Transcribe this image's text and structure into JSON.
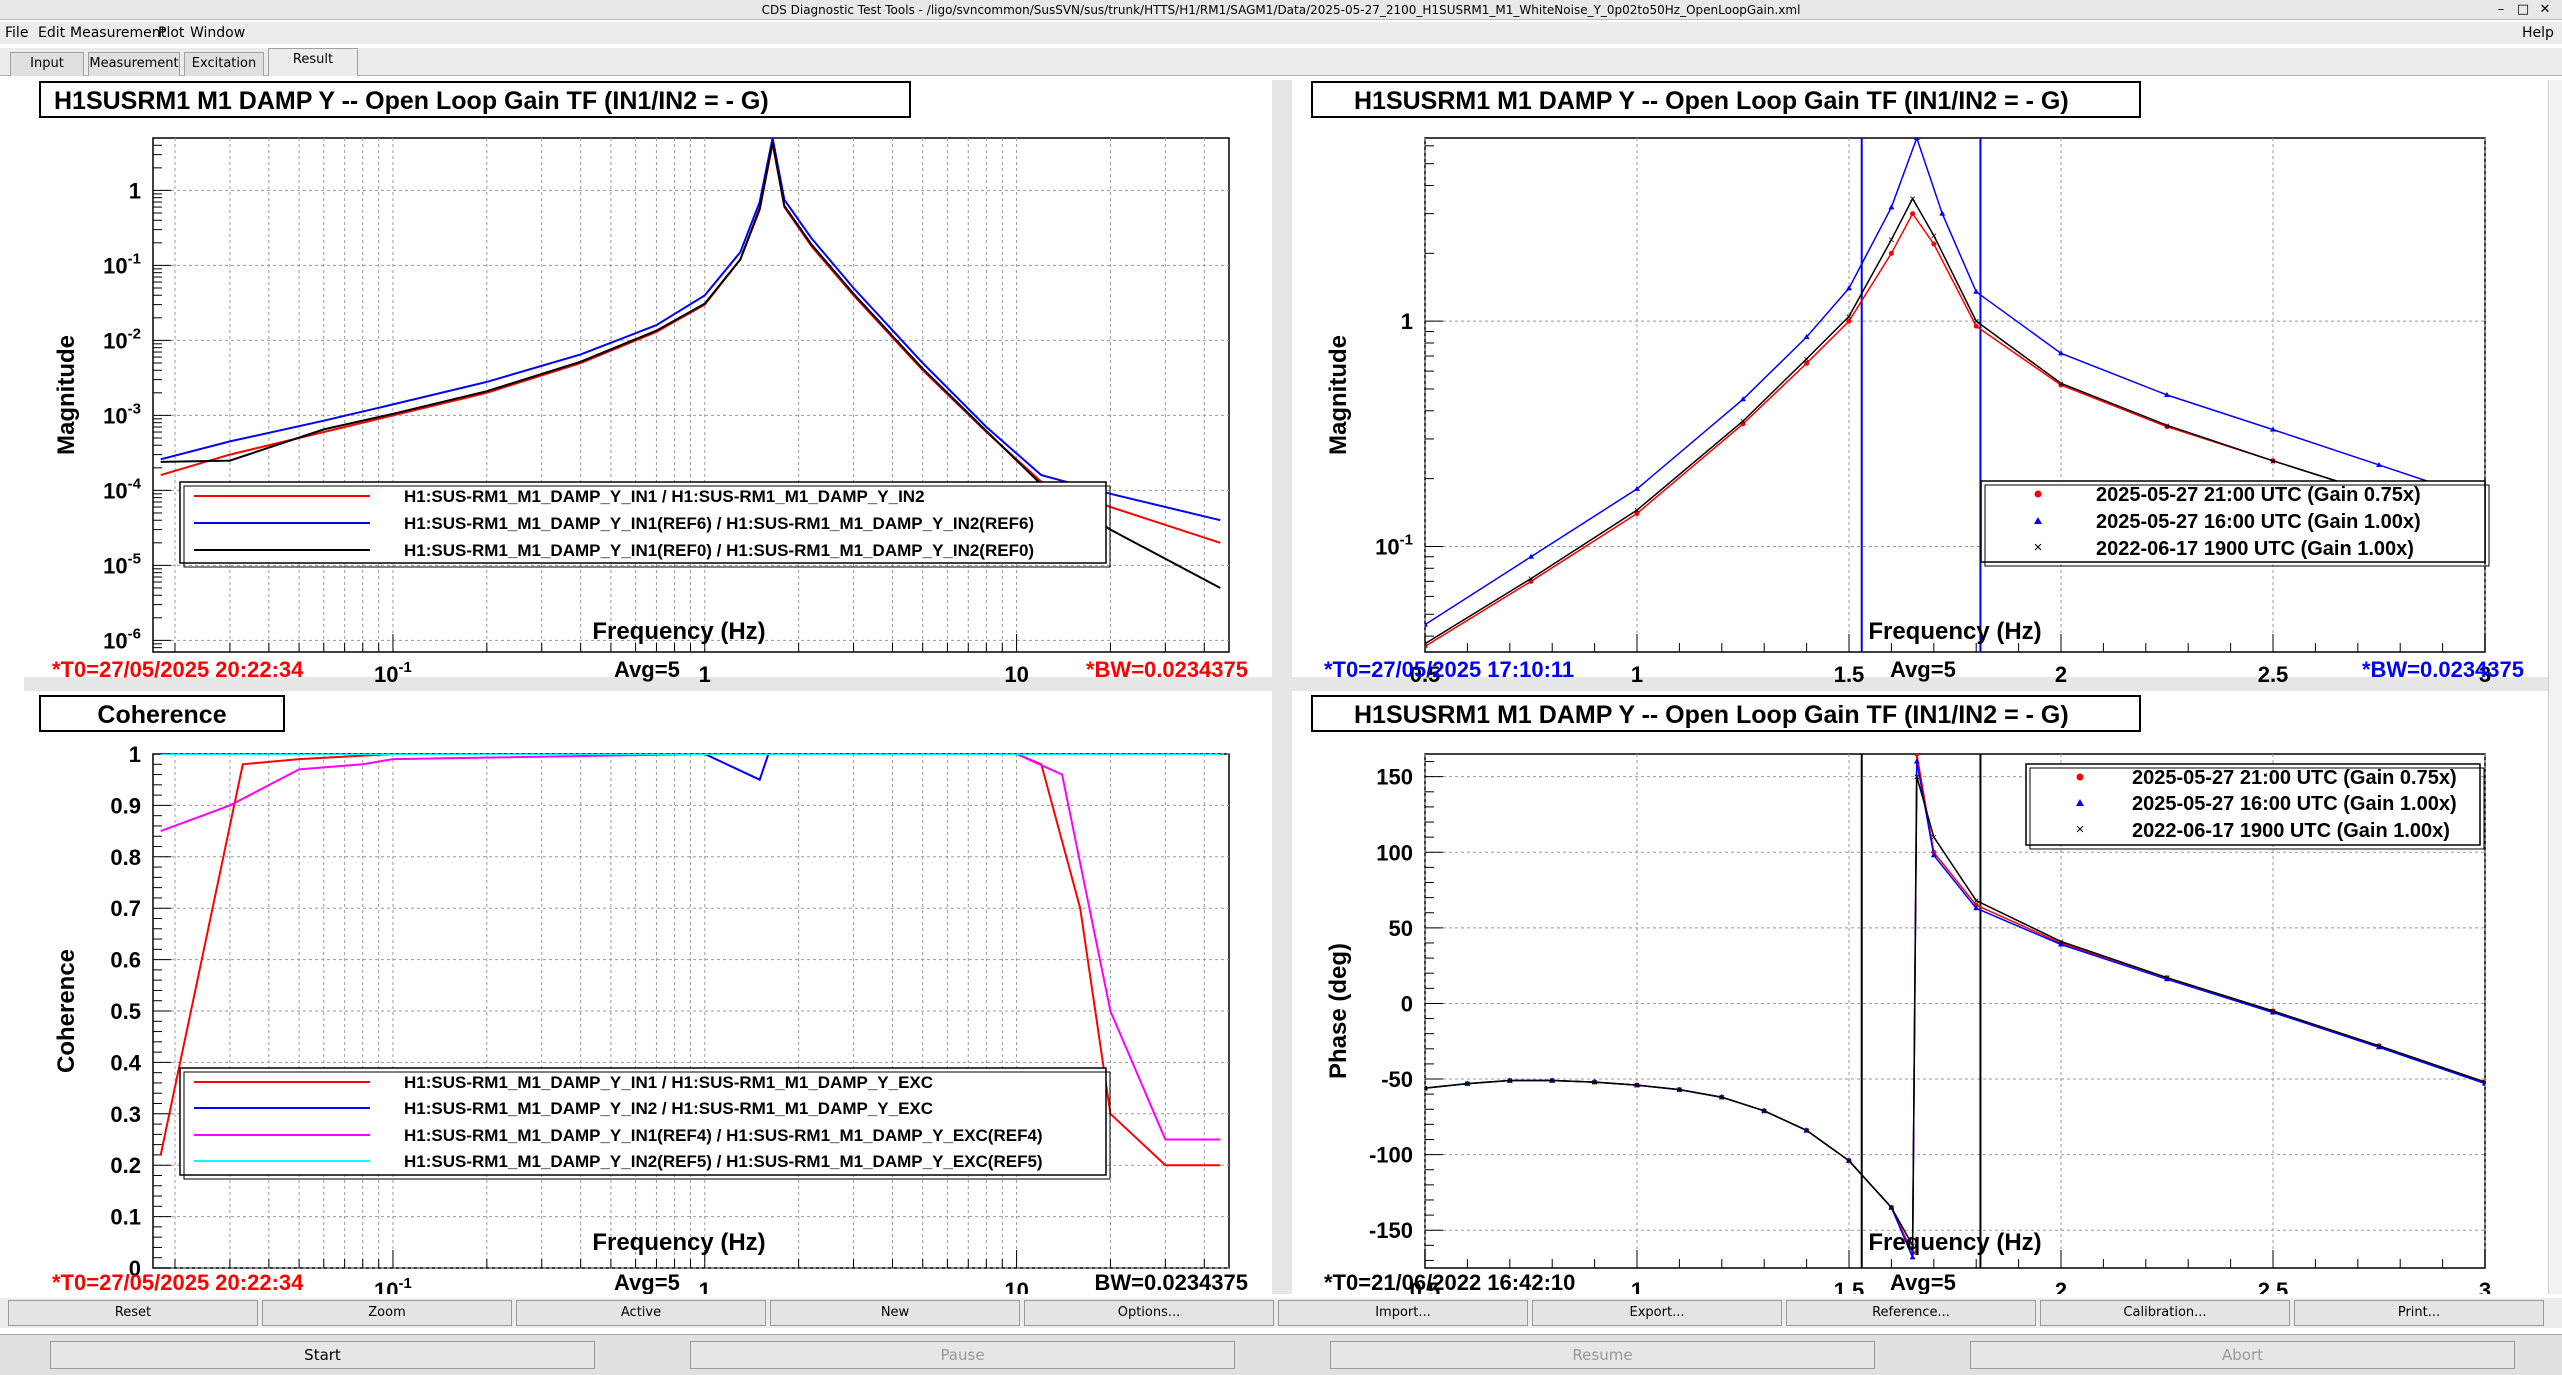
{
  "window": {
    "title": "CDS Diagnostic Test Tools - /ligo/svncommon/SusSVN/sus/trunk/HTTS/H1/RM1/SAGM1/Data/2025-05-27_2100_H1SUSRM1_M1_WhiteNoise_Y_0p02to50Hz_OpenLoopGain.xml"
  },
  "menu": {
    "file": "File",
    "edit": "Edit",
    "measurement": "Measurement",
    "plot": "Plot",
    "window": "Window",
    "help": "Help"
  },
  "tabs": [
    "Input",
    "Measurement",
    "Excitation",
    "Result"
  ],
  "panels": {
    "p1": {
      "title": "H1SUSRM1 M1 DAMP Y -- Open Loop Gain TF (IN1/IN2 = - G)",
      "ylabel": "Magnitude",
      "xlabel": "Frequency (Hz)",
      "legend": [
        "H1:SUS-RM1_M1_DAMP_Y_IN1 / H1:SUS-RM1_M1_DAMP_Y_IN2",
        "H1:SUS-RM1_M1_DAMP_Y_IN1(REF6) / H1:SUS-RM1_M1_DAMP_Y_IN2(REF6)",
        "H1:SUS-RM1_M1_DAMP_Y_IN1(REF0) / H1:SUS-RM1_M1_DAMP_Y_IN2(REF0)"
      ],
      "footer": {
        "t0": "*T0=27/05/2025 20:22:34",
        "avg": "Avg=5",
        "bw": "*BW=0.0234375"
      }
    },
    "p2": {
      "title": "H1SUSRM1 M1 DAMP Y -- Open Loop Gain TF (IN1/IN2 = - G)",
      "ylabel": "Magnitude",
      "xlabel": "Frequency (Hz)",
      "legend": [
        "2025-05-27 21:00 UTC (Gain 0.75x)",
        "2025-05-27 16:00 UTC (Gain 1.00x)",
        "2022-06-17 1900 UTC (Gain 1.00x)"
      ],
      "footer": {
        "t0": "*T0=27/05/2025 17:10:11",
        "avg": "Avg=5",
        "bw": "*BW=0.0234375"
      }
    },
    "p3": {
      "title": "Coherence",
      "ylabel": "Coherence",
      "xlabel": "Frequency (Hz)",
      "legend": [
        "H1:SUS-RM1_M1_DAMP_Y_IN1 / H1:SUS-RM1_M1_DAMP_Y_EXC",
        "H1:SUS-RM1_M1_DAMP_Y_IN2 / H1:SUS-RM1_M1_DAMP_Y_EXC",
        "H1:SUS-RM1_M1_DAMP_Y_IN1(REF4) / H1:SUS-RM1_M1_DAMP_Y_EXC(REF4)",
        "H1:SUS-RM1_M1_DAMP_Y_IN2(REF5) / H1:SUS-RM1_M1_DAMP_Y_EXC(REF5)"
      ],
      "footer": {
        "t0": "*T0=27/05/2025 20:22:34",
        "avg": "Avg=5",
        "bw": "BW=0.0234375"
      }
    },
    "p4": {
      "title": "H1SUSRM1 M1 DAMP Y -- Open Loop Gain TF (IN1/IN2 = - G)",
      "ylabel": "Phase (deg)",
      "xlabel": "Frequency (Hz)",
      "legend": [
        "2025-05-27 21:00 UTC (Gain 0.75x)",
        "2025-05-27 16:00 UTC (Gain 1.00x)",
        "2022-06-17 1900 UTC (Gain 1.00x)"
      ],
      "footer": {
        "t0": "*T0=21/06/2022 16:42:10",
        "avg": "Avg=5",
        "bw": ""
      }
    }
  },
  "plot_buttons": [
    "Reset",
    "Zoom",
    "Active",
    "New",
    "Options...",
    "Import...",
    "Export...",
    "Reference...",
    "Calibration...",
    "Print..."
  ],
  "control_buttons": [
    "Start",
    "Pause",
    "Resume",
    "Abort"
  ],
  "chart_data": [
    {
      "type": "line",
      "xscale": "log",
      "yscale": "log",
      "xlim": [
        0.017,
        48
      ],
      "ylim": [
        7e-07,
        5
      ],
      "grid": true,
      "legend_position": "bottom-left",
      "xtick_labels": [
        "10^-1",
        "1",
        "10"
      ],
      "ytick_labels": [
        "10^-6",
        "10^-5",
        "10^-4",
        "10^-3",
        "10^-2",
        "10^-1",
        "1"
      ],
      "series": [
        {
          "color": "#ff0000",
          "x": [
            0.018,
            0.03,
            0.06,
            0.1,
            0.2,
            0.4,
            0.7,
            1.0,
            1.3,
            1.5,
            1.65,
            1.8,
            2.2,
            3,
            5,
            8,
            12,
            20,
            45
          ],
          "y": [
            0.00016,
            0.0003,
            0.0006,
            0.001,
            0.002,
            0.005,
            0.013,
            0.03,
            0.12,
            0.55,
            4.2,
            0.6,
            0.18,
            0.04,
            0.004,
            0.0006,
            0.00013,
            6e-05,
            2e-05
          ]
        },
        {
          "color": "#0000ff",
          "x": [
            0.018,
            0.03,
            0.06,
            0.1,
            0.2,
            0.4,
            0.7,
            1.0,
            1.3,
            1.5,
            1.65,
            1.8,
            2.2,
            3,
            5,
            8,
            12,
            20,
            45
          ],
          "y": [
            0.00026,
            0.00045,
            0.00085,
            0.0014,
            0.0028,
            0.0065,
            0.016,
            0.04,
            0.15,
            0.7,
            5,
            0.75,
            0.23,
            0.05,
            0.005,
            0.0007,
            0.00016,
            9e-05,
            4e-05
          ]
        },
        {
          "color": "#000000",
          "x": [
            0.018,
            0.03,
            0.06,
            0.1,
            0.2,
            0.4,
            0.7,
            1.0,
            1.3,
            1.5,
            1.65,
            1.8,
            2.2,
            3,
            5,
            8,
            12,
            20,
            45
          ],
          "y": [
            0.00024,
            0.00025,
            0.00065,
            0.00105,
            0.0021,
            0.0052,
            0.0135,
            0.031,
            0.12,
            0.58,
            4.4,
            0.62,
            0.19,
            0.042,
            0.0042,
            0.00062,
            0.00012,
            3e-05,
            5e-06
          ]
        }
      ]
    },
    {
      "type": "scatter",
      "xscale": "linear",
      "yscale": "log",
      "xlim": [
        0.5,
        3
      ],
      "ylim": [
        0.034,
        6.5
      ],
      "grid": true,
      "legend_position": "bottom-right",
      "xtick_labels": [
        "0.5",
        "1",
        "1.5",
        "2",
        "2.5",
        "3"
      ],
      "ytick_labels": [
        "10^-1",
        "1"
      ],
      "vlines": [
        1.53,
        1.81
      ],
      "series": [
        {
          "color": "#ff0000",
          "marker": "dot",
          "x": [
            0.5,
            0.75,
            1.0,
            1.25,
            1.4,
            1.5,
            1.6,
            1.65,
            1.7,
            1.8,
            2.0,
            2.25,
            2.5,
            2.75,
            3.0
          ],
          "y": [
            0.036,
            0.07,
            0.14,
            0.35,
            0.65,
            1.0,
            2.0,
            3.0,
            2.2,
            0.95,
            0.52,
            0.34,
            0.24,
            0.17,
            0.12
          ]
        },
        {
          "color": "#0000ff",
          "marker": "triangle",
          "x": [
            0.5,
            0.75,
            1.0,
            1.25,
            1.4,
            1.5,
            1.6,
            1.66,
            1.72,
            1.8,
            2.0,
            2.25,
            2.5,
            2.75,
            3.0
          ],
          "y": [
            0.045,
            0.09,
            0.18,
            0.45,
            0.85,
            1.4,
            3.2,
            6.5,
            3.0,
            1.35,
            0.72,
            0.47,
            0.33,
            0.23,
            0.16
          ]
        },
        {
          "color": "#000000",
          "marker": "cross",
          "x": [
            0.5,
            0.75,
            1.0,
            1.25,
            1.4,
            1.5,
            1.6,
            1.65,
            1.7,
            1.8,
            2.0,
            2.25,
            2.5,
            2.75,
            3.0
          ],
          "y": [
            0.037,
            0.072,
            0.145,
            0.36,
            0.68,
            1.05,
            2.3,
            3.5,
            2.4,
            1.0,
            0.53,
            0.345,
            0.24,
            0.17,
            0.12
          ]
        }
      ]
    },
    {
      "type": "line",
      "xscale": "log",
      "yscale": "linear",
      "xlim": [
        0.017,
        48
      ],
      "ylim": [
        0,
        1
      ],
      "grid": true,
      "legend_position": "bottom-left",
      "xtick_labels": [
        "10^-1",
        "1",
        "10"
      ],
      "ytick_labels": [
        "0",
        "0.1",
        "0.2",
        "0.3",
        "0.4",
        "0.5",
        "0.6",
        "0.7",
        "0.8",
        "0.9",
        "1"
      ],
      "series": [
        {
          "color": "#ff0000",
          "x": [
            0.018,
            0.033,
            0.05,
            0.1,
            1,
            10,
            12,
            16,
            20,
            30,
            45
          ],
          "y": [
            0.22,
            0.98,
            0.99,
            1,
            1,
            1,
            0.98,
            0.7,
            0.3,
            0.2,
            0.2
          ]
        },
        {
          "color": "#0000ff",
          "x": [
            0.018,
            0.1,
            1,
            1.5,
            1.6,
            2,
            10,
            45
          ],
          "y": [
            1,
            1,
            1,
            0.95,
            1,
            1,
            1,
            1
          ]
        },
        {
          "color": "#ff00ff",
          "x": [
            0.018,
            0.03,
            0.05,
            0.08,
            0.1,
            1,
            10,
            14,
            20,
            30,
            45
          ],
          "y": [
            0.85,
            0.9,
            0.97,
            0.98,
            0.99,
            1,
            1,
            0.96,
            0.5,
            0.25,
            0.25
          ]
        },
        {
          "color": "#00ffff",
          "x": [
            0.018,
            45
          ],
          "y": [
            1,
            1
          ]
        }
      ]
    },
    {
      "type": "scatter",
      "xscale": "linear",
      "yscale": "linear",
      "xlim": [
        0.5,
        3
      ],
      "ylim": [
        -175,
        165
      ],
      "grid": true,
      "legend_position": "top-right",
      "xtick_labels": [
        "0.5",
        "1",
        "1.5",
        "2",
        "2.5",
        "3"
      ],
      "ytick_labels": [
        "-150",
        "-100",
        "-50",
        "0",
        "50",
        "100",
        "150"
      ],
      "vlines": [
        1.53,
        1.81
      ],
      "series": [
        {
          "color": "#ff0000",
          "marker": "dot",
          "x": [
            0.5,
            0.6,
            0.7,
            0.8,
            0.9,
            1.0,
            1.1,
            1.2,
            1.3,
            1.4,
            1.5,
            1.6,
            1.65,
            1.66,
            1.7,
            1.8,
            2.0,
            2.25,
            2.5,
            2.75,
            3.0
          ],
          "y": [
            -56,
            -53,
            -51,
            -51,
            -52,
            -54,
            -57,
            -62,
            -71,
            -84,
            -104,
            -135,
            -165,
            165,
            100,
            65,
            40,
            17,
            -5,
            -28,
            -52
          ]
        },
        {
          "color": "#0000ff",
          "marker": "triangle",
          "x": [
            0.5,
            0.6,
            0.7,
            0.8,
            0.9,
            1.0,
            1.1,
            1.2,
            1.3,
            1.4,
            1.5,
            1.6,
            1.65,
            1.66,
            1.7,
            1.8,
            2.0,
            2.25,
            2.5,
            2.75,
            3.0
          ],
          "y": [
            -56,
            -53,
            -51,
            -51,
            -52,
            -54,
            -57,
            -62,
            -71,
            -84,
            -104,
            -135,
            -168,
            160,
            98,
            63,
            39,
            16,
            -6,
            -29,
            -53
          ]
        },
        {
          "color": "#000000",
          "marker": "cross",
          "x": [
            0.5,
            0.6,
            0.7,
            0.8,
            0.9,
            1.0,
            1.1,
            1.2,
            1.3,
            1.4,
            1.5,
            1.6,
            1.65,
            1.66,
            1.7,
            1.8,
            2.0,
            2.25,
            2.5,
            2.75,
            3.0
          ],
          "y": [
            -56,
            -53,
            -51,
            -51,
            -52,
            -54,
            -57,
            -62,
            -71,
            -84,
            -104,
            -135,
            -160,
            150,
            110,
            68,
            41,
            17,
            -5,
            -28,
            -52
          ]
        }
      ]
    }
  ]
}
